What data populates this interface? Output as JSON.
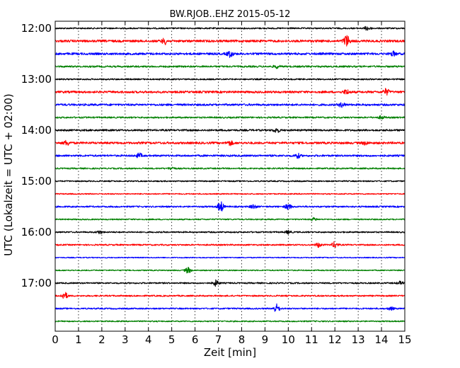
{
  "chart_data": {
    "type": "line",
    "title": "BW.RJOB..EHZ 2015-05-12",
    "xlabel": "Zeit  [min]",
    "ylabel": "UTC (Lokalzeit = UTC + 02:00)",
    "xlim": [
      0,
      15
    ],
    "x_ticks": [
      "0",
      "1",
      "2",
      "3",
      "4",
      "5",
      "6",
      "7",
      "8",
      "9",
      "10",
      "11",
      "12",
      "13",
      "14",
      "15"
    ],
    "y_tick_labels": [
      "12:00",
      "13:00",
      "14:00",
      "15:00",
      "16:00",
      "17:00"
    ],
    "grid": "vertical dotted",
    "trace_colors": [
      "#000000",
      "#ff0000",
      "#0000ff",
      "#008000"
    ],
    "traces": [
      {
        "start": "12:00",
        "color": "#000000",
        "amplitude": 1.0,
        "events": [
          {
            "x": 13.4,
            "a": 3
          }
        ]
      },
      {
        "start": "12:15",
        "color": "#ff0000",
        "amplitude": 1.6,
        "events": [
          {
            "x": 4.7,
            "a": 4
          },
          {
            "x": 12.5,
            "a": 8
          }
        ]
      },
      {
        "start": "12:30",
        "color": "#0000ff",
        "amplitude": 1.5,
        "events": [
          {
            "x": 7.5,
            "a": 4
          },
          {
            "x": 14.5,
            "a": 3
          }
        ]
      },
      {
        "start": "12:45",
        "color": "#008000",
        "amplitude": 1.2,
        "events": [
          {
            "x": 9.5,
            "a": 2
          }
        ]
      },
      {
        "start": "13:00",
        "color": "#000000",
        "amplitude": 1.0,
        "events": []
      },
      {
        "start": "13:15",
        "color": "#ff0000",
        "amplitude": 1.5,
        "events": [
          {
            "x": 12.5,
            "a": 3
          },
          {
            "x": 14.2,
            "a": 4
          }
        ]
      },
      {
        "start": "13:30",
        "color": "#0000ff",
        "amplitude": 1.4,
        "events": [
          {
            "x": 12.3,
            "a": 3
          }
        ]
      },
      {
        "start": "13:45",
        "color": "#008000",
        "amplitude": 1.1,
        "events": [
          {
            "x": 14.0,
            "a": 2
          }
        ]
      },
      {
        "start": "14:00",
        "color": "#000000",
        "amplitude": 1.3,
        "events": [
          {
            "x": 9.5,
            "a": 3
          }
        ]
      },
      {
        "start": "14:15",
        "color": "#ff0000",
        "amplitude": 1.5,
        "events": [
          {
            "x": 0.5,
            "a": 3
          },
          {
            "x": 7.5,
            "a": 3
          },
          {
            "x": 13.3,
            "a": 2
          }
        ]
      },
      {
        "start": "14:30",
        "color": "#0000ff",
        "amplitude": 1.3,
        "events": [
          {
            "x": 3.6,
            "a": 3
          },
          {
            "x": 10.4,
            "a": 3
          }
        ]
      },
      {
        "start": "14:45",
        "color": "#008000",
        "amplitude": 1.0,
        "events": [
          {
            "x": 5.0,
            "a": 2
          }
        ]
      },
      {
        "start": "15:00",
        "color": "#000000",
        "amplitude": 0.9,
        "events": []
      },
      {
        "start": "15:15",
        "color": "#ff0000",
        "amplitude": 0.8,
        "events": []
      },
      {
        "start": "15:30",
        "color": "#0000ff",
        "amplitude": 1.1,
        "events": [
          {
            "x": 7.1,
            "a": 7
          },
          {
            "x": 8.5,
            "a": 3
          },
          {
            "x": 10.0,
            "a": 4
          }
        ]
      },
      {
        "start": "15:45",
        "color": "#008000",
        "amplitude": 0.9,
        "events": [
          {
            "x": 11.1,
            "a": 2
          }
        ]
      },
      {
        "start": "16:00",
        "color": "#000000",
        "amplitude": 1.0,
        "events": [
          {
            "x": 1.9,
            "a": 2
          },
          {
            "x": 10.0,
            "a": 2
          }
        ]
      },
      {
        "start": "16:15",
        "color": "#ff0000",
        "amplitude": 1.0,
        "events": [
          {
            "x": 11.3,
            "a": 3
          },
          {
            "x": 12.0,
            "a": 4
          }
        ]
      },
      {
        "start": "16:30",
        "color": "#0000ff",
        "amplitude": 0.7,
        "events": []
      },
      {
        "start": "16:45",
        "color": "#008000",
        "amplitude": 0.8,
        "events": [
          {
            "x": 5.7,
            "a": 4
          }
        ]
      },
      {
        "start": "17:00",
        "color": "#000000",
        "amplitude": 1.0,
        "events": [
          {
            "x": 6.9,
            "a": 4
          },
          {
            "x": 14.8,
            "a": 2
          }
        ]
      },
      {
        "start": "17:15",
        "color": "#ff0000",
        "amplitude": 1.0,
        "events": [
          {
            "x": 0.4,
            "a": 5
          }
        ]
      },
      {
        "start": "17:30",
        "color": "#0000ff",
        "amplitude": 1.0,
        "events": [
          {
            "x": 9.5,
            "a": 6
          },
          {
            "x": 14.4,
            "a": 2
          }
        ]
      },
      {
        "start": "17:45",
        "color": "#008000",
        "amplitude": 0.9,
        "events": []
      }
    ]
  }
}
